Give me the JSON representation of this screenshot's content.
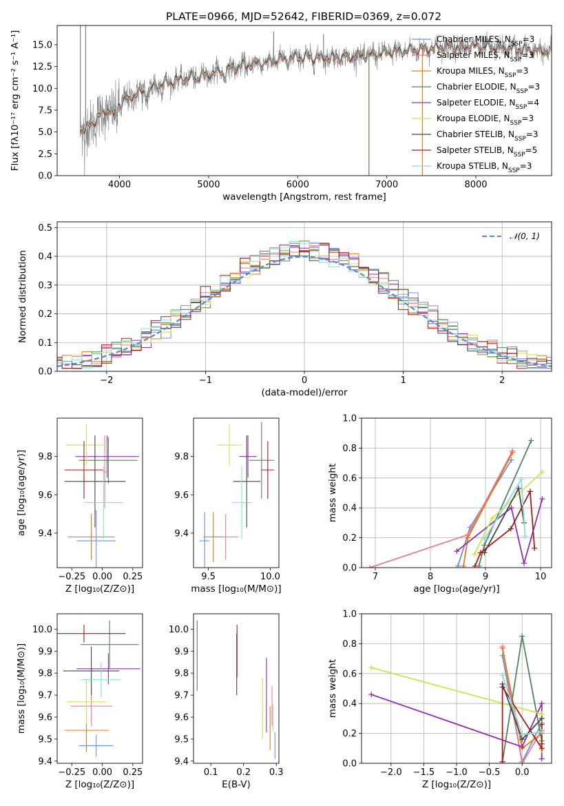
{
  "figure": {
    "background": "#ffffff"
  },
  "colors": [
    "#6f8ed8",
    "#e47b95",
    "#e27a1b",
    "#55815a",
    "#8e2faa",
    "#cfe154",
    "#454545",
    "#a41a1b",
    "#8bdcd9"
  ],
  "chart_data": [
    {
      "id": "spectrum",
      "type": "line",
      "title": "PLATE=0966, MJD=52642, FIBERID=0369, z=0.072",
      "xlabel": "wavelength [Angstrom, rest frame]",
      "ylabel": "Flux [fλ10⁻¹⁷ erg cm⁻² s⁻¹ A⁻¹]",
      "xlim": [
        3300,
        8850
      ],
      "ylim": [
        0,
        17.2
      ],
      "xticks": [
        4000,
        5000,
        6000,
        7000,
        8000
      ],
      "xtick_labels": [
        "4000",
        "5000",
        "6000",
        "7000",
        "8000"
      ],
      "yticks": [
        0,
        2.5,
        5,
        7.5,
        10,
        12.5,
        15
      ],
      "ytick_labels": [
        "0.0",
        "2.5",
        "5.0",
        "7.5",
        "10.0",
        "12.5",
        "15.0"
      ],
      "grid": false,
      "legend": "top-right",
      "data_color": "#808080",
      "continuum": {
        "x": [
          3550,
          3650,
          3750,
          3850,
          3950,
          4000,
          4100,
          4250,
          4400,
          4600,
          4800,
          5000,
          5200,
          5400,
          5600,
          5800,
          6000,
          6200,
          6500,
          6800,
          7000,
          7200,
          7400,
          7600,
          8000,
          8400,
          8800
        ],
        "y": [
          5.2,
          5.5,
          6.6,
          7.4,
          7.6,
          8.2,
          9.0,
          9.6,
          10.3,
          10.8,
          11.3,
          11.6,
          12.2,
          12.6,
          12.9,
          13.3,
          13.6,
          13.5,
          13.6,
          13.8,
          14.1,
          14.3,
          14.5,
          14.7,
          14.8,
          14.6,
          14.2
        ]
      },
      "series": [
        {
          "name": "Chabrier MILES, N_SSP=3"
        },
        {
          "name": "Salpeter MILES, N_SSP=3"
        },
        {
          "name": "Kroupa MILES, N_SSP=3"
        },
        {
          "name": "Chabrier ELODIE, N_SSP=3"
        },
        {
          "name": "Salpeter ELODIE, N_SSP=4"
        },
        {
          "name": "Kroupa ELODIE, N_SSP=3"
        },
        {
          "name": "Chabrier STELIB, N_SSP=3"
        },
        {
          "name": "Salpeter STELIB, N_SSP=5"
        },
        {
          "name": "Kroupa STELIB, N_SSP=3"
        }
      ]
    },
    {
      "id": "residuals",
      "type": "line",
      "xlabel": "(data-model)/error",
      "ylabel": "Normed distribution",
      "xlim": [
        -2.5,
        2.5
      ],
      "ylim": [
        0,
        0.52
      ],
      "xticks": [
        -2,
        -1,
        0,
        1,
        2
      ],
      "xtick_labels": [
        "−2",
        "−1",
        "0",
        "1",
        "2"
      ],
      "yticks": [
        0,
        0.1,
        0.2,
        0.3,
        0.4,
        0.5
      ],
      "ytick_labels": [
        "0.0",
        "0.1",
        "0.2",
        "0.3",
        "0.4",
        "0.5"
      ],
      "grid": true,
      "legend": "top-right",
      "bin_width": 0.1,
      "reference": {
        "name": "𝒩(0, 1)",
        "color": "#5b8ad0",
        "style": "dashed"
      }
    },
    {
      "id": "age-vs-Z",
      "type": "scatter",
      "xlabel": "Z [log₁₀(Z/Z⊙)]",
      "ylabel": "age  [log₁₀(age/yr)]",
      "xlim": [
        -0.37,
        0.33
      ],
      "ylim": [
        9.22,
        10.0
      ],
      "xticks": [
        -0.25,
        0,
        0.25
      ],
      "xtick_labels": [
        "−0.25",
        "0.00",
        "0.25"
      ],
      "yticks": [
        9.4,
        9.6,
        9.8
      ],
      "ytick_labels": [
        "9.4",
        "9.6",
        "9.8"
      ],
      "grid": false,
      "points": [
        {
          "x": -0.05,
          "y": 9.36,
          "xerr": 0.16,
          "yerr": 0.16
        },
        {
          "x": 0.02,
          "y": 9.72,
          "xerr": 0.02,
          "yerr": 0.19
        },
        {
          "x": -0.09,
          "y": 9.38,
          "xerr": 0.19,
          "yerr": 0.12
        },
        {
          "x": 0.05,
          "y": 9.78,
          "xerr": 0.24,
          "yerr": 0.12
        },
        {
          "x": 0.04,
          "y": 9.8,
          "xerr": 0.26,
          "yerr": 0.11
        },
        {
          "x": -0.13,
          "y": 9.86,
          "xerr": 0.17,
          "yerr": 0.11
        },
        {
          "x": -0.06,
          "y": 9.67,
          "xerr": 0.25,
          "yerr": 0.24
        },
        {
          "x": -0.15,
          "y": 9.73,
          "xerr": 0.16,
          "yerr": 0.15
        },
        {
          "x": 0.01,
          "y": 9.56,
          "xerr": 0.16,
          "yerr": 0.19
        }
      ]
    },
    {
      "id": "age-vs-mass",
      "type": "scatter",
      "xlabel": "mass [log₁₀(M/M⊙)]",
      "xlim": [
        9.38,
        10.07
      ],
      "ylim": [
        9.22,
        10.0
      ],
      "xticks": [
        9.5,
        10.0
      ],
      "xtick_labels": [
        "9.5",
        "10.0"
      ],
      "yticks": [
        9.4,
        9.6,
        9.8
      ],
      "ytick_labels": [
        "9.4",
        "9.6",
        "9.8"
      ],
      "grid": false,
      "points": [
        {
          "x": 9.47,
          "y": 9.36,
          "xerr": 0.04,
          "yerr": 0.15
        },
        {
          "x": 9.64,
          "y": 9.38,
          "xerr": 0.1,
          "yerr": 0.12
        },
        {
          "x": 9.54,
          "y": 9.38,
          "xerr": 0.08,
          "yerr": 0.13
        },
        {
          "x": 9.93,
          "y": 9.78,
          "xerr": 0.1,
          "yerr": 0.2
        },
        {
          "x": 9.82,
          "y": 9.8,
          "xerr": 0.07,
          "yerr": 0.11
        },
        {
          "x": 9.67,
          "y": 9.86,
          "xerr": 0.1,
          "yerr": 0.11
        },
        {
          "x": 9.81,
          "y": 9.67,
          "xerr": 0.11,
          "yerr": 0.24
        },
        {
          "x": 9.98,
          "y": 9.73,
          "xerr": 0.05,
          "yerr": 0.15
        },
        {
          "x": 9.77,
          "y": 9.56,
          "xerr": 0.08,
          "yerr": 0.19
        }
      ]
    },
    {
      "id": "weight-vs-age",
      "type": "line",
      "xlabel": "age  [log₁₀(age/yr)]",
      "ylabel": "mass weight",
      "xlim": [
        6.75,
        10.2
      ],
      "ylim": [
        0,
        1.0
      ],
      "xticks": [
        7,
        8,
        9,
        10
      ],
      "xtick_labels": [
        "7",
        "8",
        "9",
        "10"
      ],
      "yticks": [
        0,
        0.2,
        0.4,
        0.6,
        0.8,
        1.0
      ],
      "ytick_labels": [
        "0.0",
        "0.2",
        "0.4",
        "0.6",
        "0.8",
        "1.0"
      ],
      "grid": true,
      "series": [
        {
          "x": [
            8.5,
            8.72,
            9.47
          ],
          "y": [
            0.01,
            0.27,
            0.72
          ]
        },
        {
          "x": [
            6.9,
            8.68,
            9.49
          ],
          "y": [
            0.0,
            0.22,
            0.78
          ]
        },
        {
          "x": [
            8.6,
            8.68,
            9.49
          ],
          "y": [
            0.01,
            0.2,
            0.77
          ]
        },
        {
          "x": [
            8.88,
            8.98,
            9.83
          ],
          "y": [
            0.01,
            0.15,
            0.85
          ]
        },
        {
          "x": [
            8.48,
            9.47,
            9.7,
            10.03
          ],
          "y": [
            0.11,
            0.4,
            0.03,
            0.46
          ]
        },
        {
          "x": [
            8.8,
            9.12,
            10.03
          ],
          "y": [
            0.09,
            0.33,
            0.64
          ]
        },
        {
          "x": [
            8.98,
            9.6,
            9.7
          ],
          "y": [
            0.1,
            0.53,
            0.3
          ]
        },
        {
          "x": [
            8.81,
            8.91,
            9.46,
            9.81,
            9.89
          ],
          "y": [
            0.01,
            0.1,
            0.26,
            0.51,
            0.13
          ]
        },
        {
          "x": [
            8.98,
            9.65,
            9.72
          ],
          "y": [
            0.19,
            0.59,
            0.21
          ]
        }
      ]
    },
    {
      "id": "mass-vs-Z",
      "type": "scatter",
      "xlabel": "Z [log₁₀(Z/Z⊙)]",
      "ylabel": "mass [log₁₀(M/M⊙)]",
      "xlim": [
        -0.37,
        0.33
      ],
      "ylim": [
        9.39,
        10.07
      ],
      "xticks": [
        -0.25,
        0,
        0.25
      ],
      "xtick_labels": [
        "−0.25",
        "0.00",
        "0.25"
      ],
      "yticks": [
        9.4,
        9.5,
        9.6,
        9.7,
        9.8,
        9.9,
        10.0
      ],
      "ytick_labels": [
        "9.4",
        "9.5",
        "9.6",
        "9.7",
        "9.8",
        "9.9",
        "10.0"
      ],
      "grid": false,
      "points": [
        {
          "x": -0.05,
          "y": 9.47,
          "xerr": 0.14,
          "yerr": 0.05
        },
        {
          "x": -0.09,
          "y": 9.65,
          "xerr": 0.17,
          "yerr": 0.09
        },
        {
          "x": -0.13,
          "y": 9.54,
          "xerr": 0.18,
          "yerr": 0.1
        },
        {
          "x": 0.06,
          "y": 9.93,
          "xerr": 0.24,
          "yerr": 0.11
        },
        {
          "x": 0.05,
          "y": 9.82,
          "xerr": 0.26,
          "yerr": 0.07
        },
        {
          "x": -0.13,
          "y": 9.67,
          "xerr": 0.16,
          "yerr": 0.1
        },
        {
          "x": -0.09,
          "y": 9.81,
          "xerr": 0.23,
          "yerr": 0.11
        },
        {
          "x": -0.15,
          "y": 9.98,
          "xerr": 0.34,
          "yerr": 0.04
        },
        {
          "x": -0.01,
          "y": 9.77,
          "xerr": 0.16,
          "yerr": 0.08
        }
      ]
    },
    {
      "id": "mass-vs-ebv",
      "type": "scatter",
      "xlabel": "E(B-V)",
      "xlim": [
        0.047,
        0.308
      ],
      "ylim": [
        9.39,
        10.07
      ],
      "xticks": [
        0.1,
        0.2,
        0.3
      ],
      "xtick_labels": [
        "0.1",
        "0.2",
        "0.3"
      ],
      "yticks": [
        9.4,
        9.5,
        9.6,
        9.7,
        9.8,
        9.9,
        10.0
      ],
      "ytick_labels": [
        "9.4",
        "9.5",
        "9.6",
        "9.7",
        "9.8",
        "9.9",
        "10.0"
      ],
      "grid": false,
      "points": [
        {
          "x": 0.296,
          "y": 9.47,
          "xerr": 0,
          "yerr": 0.06
        },
        {
          "x": 0.287,
          "y": 9.65,
          "xerr": 0,
          "yerr": 0.09
        },
        {
          "x": 0.281,
          "y": 9.55,
          "xerr": 0,
          "yerr": 0.1
        },
        {
          "x": 0.058,
          "y": 9.88,
          "xerr": 0,
          "yerr": 0.16
        },
        {
          "x": 0.27,
          "y": 9.7,
          "xerr": 0,
          "yerr": 0.17
        },
        {
          "x": 0.258,
          "y": 9.64,
          "xerr": 0,
          "yerr": 0.14
        },
        {
          "x": 0.179,
          "y": 9.84,
          "xerr": 0,
          "yerr": 0.14
        },
        {
          "x": 0.18,
          "y": 9.9,
          "xerr": 0,
          "yerr": 0.12
        },
        {
          "x": 0.29,
          "y": 9.6,
          "xerr": 0,
          "yerr": 0.06
        }
      ]
    },
    {
      "id": "weight-vs-Z",
      "type": "line",
      "xlabel": "Z [log₁₀(Z/Z⊙)]",
      "ylabel": "mass weight",
      "xlim": [
        -2.45,
        0.45
      ],
      "ylim": [
        0,
        1.0
      ],
      "xticks": [
        -2.0,
        -1.5,
        -1.0,
        -0.5,
        0.0
      ],
      "xtick_labels": [
        "−2.0",
        "−1.5",
        "−1.0",
        "−0.5",
        "0.0"
      ],
      "yticks": [
        0,
        0.2,
        0.4,
        0.6,
        0.8,
        1.0
      ],
      "ytick_labels": [
        "0.0",
        "0.2",
        "0.4",
        "0.6",
        "0.8",
        "1.0"
      ],
      "grid": true,
      "series": [
        {
          "x": [
            -0.3,
            0.0,
            0.3
          ],
          "y": [
            0.72,
            0.01,
            0.27
          ]
        },
        {
          "x": [
            -0.3,
            0.0,
            0.3
          ],
          "y": [
            0.78,
            0.0,
            0.22
          ]
        },
        {
          "x": [
            -0.3,
            0.0,
            0.3
          ],
          "y": [
            0.77,
            0.1,
            0.2
          ]
        },
        {
          "x": [
            -0.3,
            0.0,
            0.3
          ],
          "y": [
            0.01,
            0.85,
            0.15
          ]
        },
        {
          "x": [
            -2.3,
            0.0,
            0.3,
            0.3
          ],
          "y": [
            0.46,
            0.11,
            0.4,
            0.03
          ]
        },
        {
          "x": [
            -2.3,
            0.3,
            0.3
          ],
          "y": [
            0.64,
            0.33,
            0.09
          ]
        },
        {
          "x": [
            -0.3,
            0.0,
            0.3
          ],
          "y": [
            0.53,
            0.16,
            0.3
          ]
        },
        {
          "x": [
            -0.3,
            -0.3,
            0.3,
            0.3,
            0.3
          ],
          "y": [
            0.01,
            0.51,
            0.1,
            0.26,
            0.13
          ]
        },
        {
          "x": [
            -0.3,
            0.0,
            0.3
          ],
          "y": [
            0.59,
            0.19,
            0.21
          ]
        }
      ]
    }
  ]
}
